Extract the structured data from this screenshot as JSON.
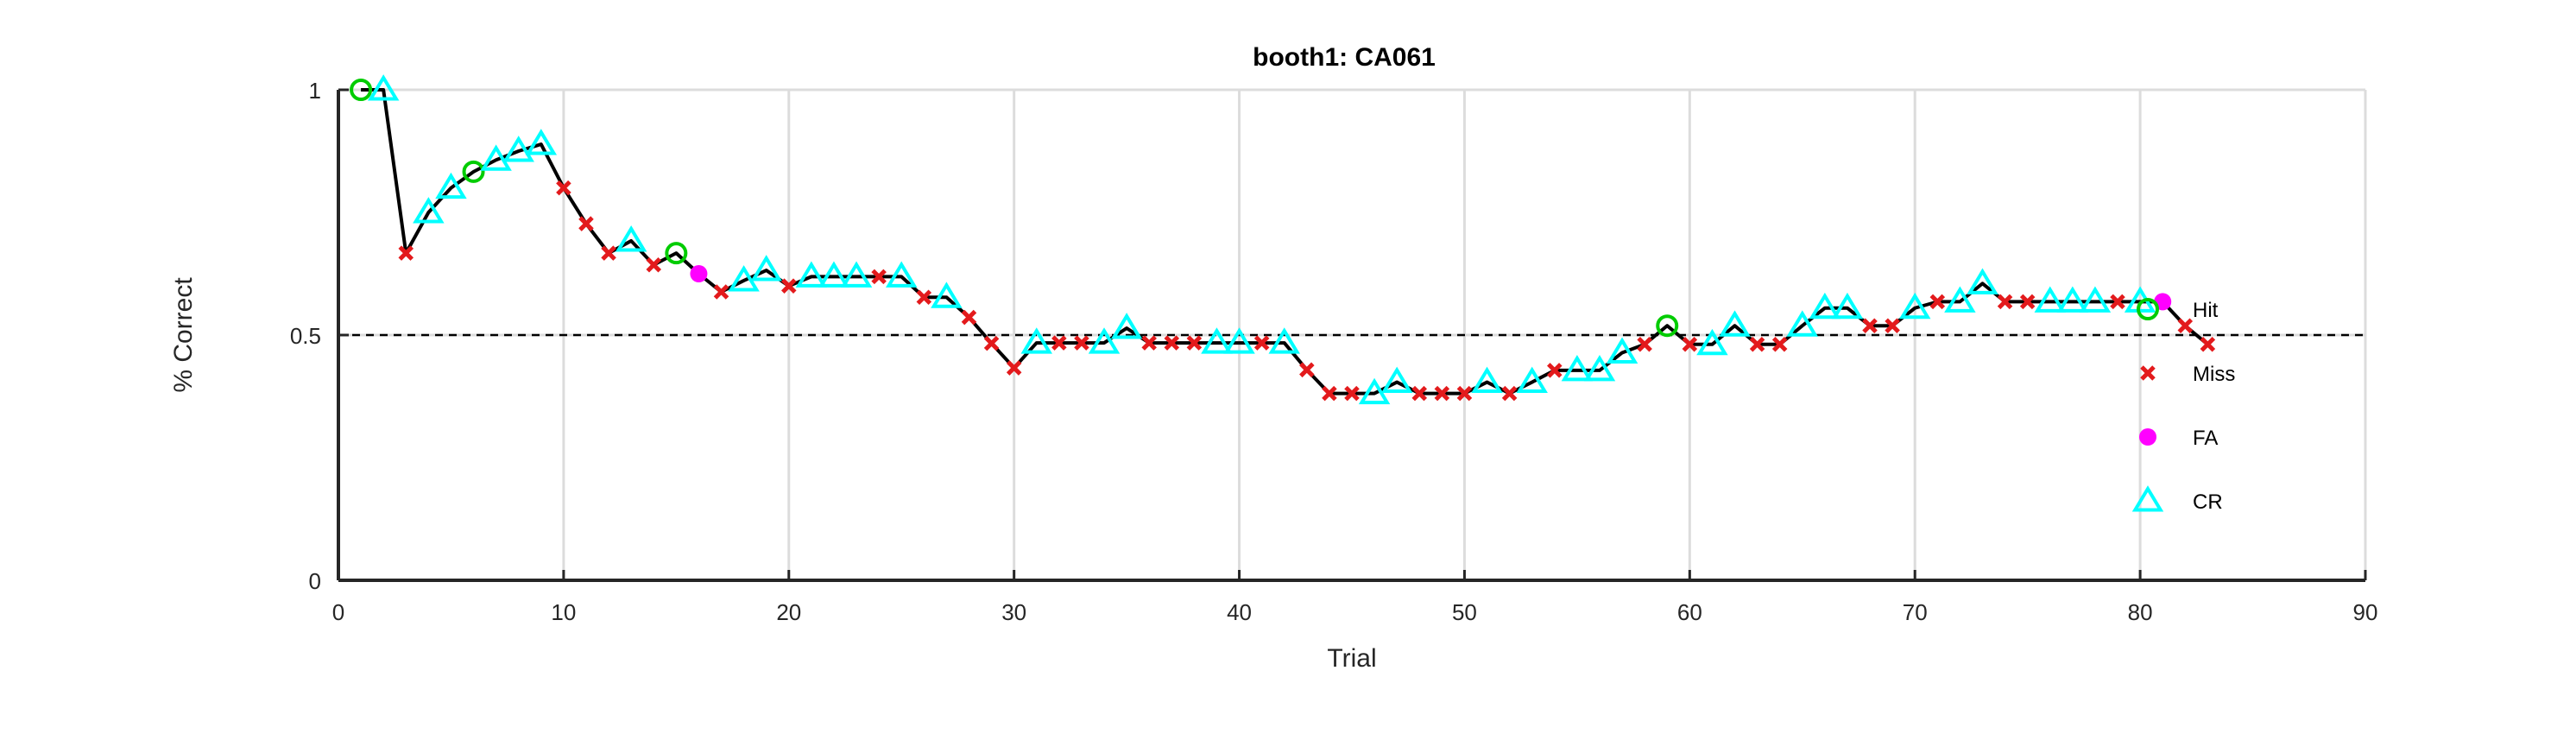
{
  "chart_data": {
    "type": "line",
    "title": "booth1: CA061",
    "xlabel": "Trial",
    "ylabel": "% Correct",
    "xlim": [
      0,
      90
    ],
    "ylim": [
      0,
      1
    ],
    "xticks": [
      0,
      10,
      20,
      30,
      40,
      50,
      60,
      70,
      80,
      90
    ],
    "xtick_labels": [
      "0",
      "10",
      "20",
      "30",
      "40",
      "50",
      "60",
      "70",
      "80",
      "90"
    ],
    "yticks": [
      0,
      0.5,
      1
    ],
    "ytick_labels": [
      "0",
      "0.5",
      "1"
    ],
    "grid": true,
    "reference_line": 0.5,
    "legend": {
      "placement": "right",
      "entries": [
        "Hit",
        "Miss",
        "FA",
        "CR"
      ]
    },
    "colors": {
      "line": "#000000",
      "Hit": "#00cc00",
      "Miss": "#e31a1c",
      "FA": "#ff00ff",
      "CR": "#00ffff"
    },
    "series": [
      {
        "name": "% Correct",
        "x": [
          1,
          2,
          3,
          4,
          5,
          6,
          7,
          8,
          9,
          10,
          11,
          12,
          13,
          14,
          15,
          16,
          17,
          18,
          19,
          20,
          21,
          22,
          23,
          24,
          25,
          26,
          27,
          28,
          29,
          30,
          31,
          32,
          33,
          34,
          35,
          36,
          37,
          38,
          39,
          40,
          41,
          42,
          43,
          44,
          45,
          46,
          47,
          48,
          49,
          50,
          51,
          52,
          53,
          54,
          55,
          56,
          57,
          58,
          59,
          60,
          61,
          62,
          63,
          64,
          65,
          66,
          67,
          68,
          69,
          70,
          71,
          72,
          73,
          74,
          75,
          76,
          77,
          78,
          79,
          80,
          81,
          82,
          83
        ],
        "y": [
          1.0,
          1.0,
          0.667,
          0.75,
          0.8,
          0.833,
          0.857,
          0.875,
          0.889,
          0.8,
          0.727,
          0.667,
          0.692,
          0.643,
          0.667,
          0.625,
          0.588,
          0.611,
          0.632,
          0.6,
          0.619,
          0.619,
          0.619,
          0.619,
          0.619,
          0.577,
          0.577,
          0.536,
          0.483,
          0.433,
          0.484,
          0.484,
          0.484,
          0.484,
          0.514,
          0.484,
          0.484,
          0.484,
          0.484,
          0.484,
          0.484,
          0.484,
          0.429,
          0.381,
          0.381,
          0.381,
          0.404,
          0.381,
          0.381,
          0.381,
          0.404,
          0.381,
          0.404,
          0.428,
          0.428,
          0.428,
          0.464,
          0.481,
          0.519,
          0.481,
          0.481,
          0.519,
          0.481,
          0.481,
          0.519,
          0.555,
          0.555,
          0.519,
          0.519,
          0.555,
          0.568,
          0.568,
          0.605,
          0.568,
          0.568,
          0.568,
          0.568,
          0.568,
          0.568,
          0.568,
          0.568,
          0.519,
          0.481
        ],
        "outcome": [
          "Hit",
          "CR",
          "Miss",
          "CR",
          "CR",
          "Hit",
          "CR",
          "CR",
          "CR",
          "Miss",
          "Miss",
          "Miss",
          "CR",
          "Miss",
          "Hit",
          "FA",
          "Miss",
          "CR",
          "CR",
          "Miss",
          "CR",
          "CR",
          "CR",
          "Miss",
          "CR",
          "Miss",
          "CR",
          "Miss",
          "Miss",
          "Miss",
          "CR",
          "Miss",
          "Miss",
          "CR",
          "CR",
          "Miss",
          "Miss",
          "Miss",
          "CR",
          "CR",
          "Miss",
          "CR",
          "Miss",
          "Miss",
          "Miss",
          "CR",
          "CR",
          "Miss",
          "Miss",
          "Miss",
          "CR",
          "Miss",
          "CR",
          "Miss",
          "CR",
          "CR",
          "CR",
          "Miss",
          "Hit",
          "Miss",
          "CR",
          "CR",
          "Miss",
          "Miss",
          "CR",
          "CR",
          "CR",
          "Miss",
          "Miss",
          "CR",
          "Miss",
          "CR",
          "CR",
          "Miss",
          "Miss",
          "CR",
          "CR",
          "CR",
          "Miss",
          "CR",
          "FA",
          "Miss",
          "Miss"
        ]
      }
    ]
  }
}
